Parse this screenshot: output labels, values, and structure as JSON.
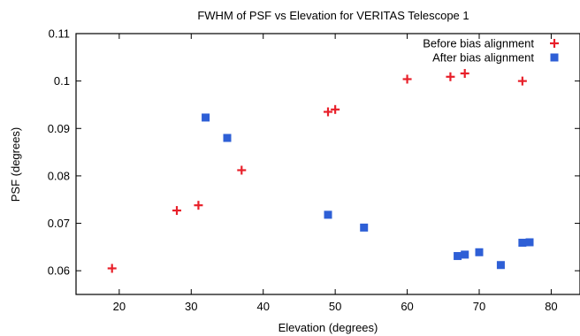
{
  "chart_data": {
    "type": "scatter",
    "title": "FWHM of PSF vs Elevation for VERITAS Telescope 1",
    "xlabel": "Elevation (degrees)",
    "ylabel": "PSF (degrees)",
    "xlim": [
      14,
      84
    ],
    "ylim": [
      0.055,
      0.11
    ],
    "x_ticks": [
      20,
      30,
      40,
      50,
      60,
      70,
      80
    ],
    "y_ticks": [
      0.06,
      0.07,
      0.08,
      0.09,
      0.1,
      0.11
    ],
    "y_tick_labels": [
      "0.06",
      "0.07",
      "0.08",
      "0.09",
      "0.1",
      "0.11"
    ],
    "grid": false,
    "legend_position": "top-right",
    "series": [
      {
        "name": "Before bias alignment",
        "marker": "plus",
        "color": "#e8202a",
        "points": [
          {
            "x": 19,
            "y": 0.0605
          },
          {
            "x": 28,
            "y": 0.0727
          },
          {
            "x": 31,
            "y": 0.0738
          },
          {
            "x": 37,
            "y": 0.0812
          },
          {
            "x": 49,
            "y": 0.0935
          },
          {
            "x": 50,
            "y": 0.094
          },
          {
            "x": 60,
            "y": 0.1004
          },
          {
            "x": 66,
            "y": 0.1009
          },
          {
            "x": 68,
            "y": 0.1016
          },
          {
            "x": 76,
            "y": 0.1
          }
        ]
      },
      {
        "name": "After bias alignment",
        "marker": "square",
        "color": "#2e5fd6",
        "points": [
          {
            "x": 32,
            "y": 0.0923
          },
          {
            "x": 35,
            "y": 0.088
          },
          {
            "x": 49,
            "y": 0.0718
          },
          {
            "x": 54,
            "y": 0.0691
          },
          {
            "x": 67,
            "y": 0.0631
          },
          {
            "x": 68,
            "y": 0.0634
          },
          {
            "x": 70,
            "y": 0.0639
          },
          {
            "x": 73,
            "y": 0.0612
          },
          {
            "x": 76,
            "y": 0.0659
          },
          {
            "x": 77,
            "y": 0.066
          }
        ]
      }
    ]
  }
}
